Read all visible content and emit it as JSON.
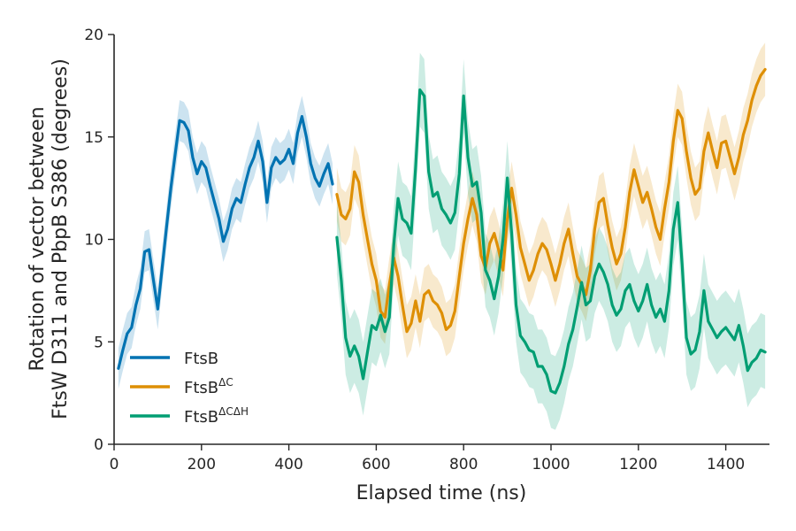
{
  "chart_data": {
    "type": "line",
    "title": "",
    "xlabel": "Elapsed time (ns)",
    "ylabel_lines": [
      "Rotation of vector between",
      "FtsW D311 and PbpB S386 (degrees)"
    ],
    "xlim": [
      0,
      1500
    ],
    "ylim": [
      0,
      20
    ],
    "xticks": [
      0,
      200,
      400,
      600,
      800,
      1000,
      1200,
      1400
    ],
    "yticks": [
      0,
      5,
      10,
      15,
      20
    ],
    "grid": false,
    "legend_position": "lower-left",
    "series": [
      {
        "name": "FtsB",
        "sup": "",
        "color": "#0173b2",
        "band_half_width": 1.0,
        "points": [
          [
            10,
            3.7
          ],
          [
            20,
            4.6
          ],
          [
            30,
            5.4
          ],
          [
            40,
            5.7
          ],
          [
            50,
            6.8
          ],
          [
            60,
            7.6
          ],
          [
            70,
            9.4
          ],
          [
            80,
            9.5
          ],
          [
            90,
            8.0
          ],
          [
            100,
            6.6
          ],
          [
            110,
            8.6
          ],
          [
            120,
            10.6
          ],
          [
            130,
            12.5
          ],
          [
            140,
            14.2
          ],
          [
            150,
            15.8
          ],
          [
            160,
            15.7
          ],
          [
            170,
            15.3
          ],
          [
            180,
            14.0
          ],
          [
            190,
            13.2
          ],
          [
            200,
            13.8
          ],
          [
            210,
            13.5
          ],
          [
            220,
            12.6
          ],
          [
            230,
            11.8
          ],
          [
            240,
            11.0
          ],
          [
            250,
            9.9
          ],
          [
            260,
            10.5
          ],
          [
            270,
            11.5
          ],
          [
            280,
            12.0
          ],
          [
            290,
            11.8
          ],
          [
            300,
            12.7
          ],
          [
            310,
            13.5
          ],
          [
            320,
            14.0
          ],
          [
            330,
            14.8
          ],
          [
            340,
            13.8
          ],
          [
            350,
            11.8
          ],
          [
            360,
            13.5
          ],
          [
            370,
            14.0
          ],
          [
            380,
            13.7
          ],
          [
            390,
            13.9
          ],
          [
            400,
            14.4
          ],
          [
            410,
            13.7
          ],
          [
            420,
            15.2
          ],
          [
            430,
            16.0
          ],
          [
            440,
            15.0
          ],
          [
            450,
            13.7
          ],
          [
            460,
            13.0
          ],
          [
            470,
            12.6
          ],
          [
            480,
            13.2
          ],
          [
            490,
            13.7
          ],
          [
            500,
            12.7
          ]
        ]
      },
      {
        "name": "FtsB",
        "sup": "ΔC",
        "color": "#de8f05",
        "band_half_width": 1.3,
        "points": [
          [
            510,
            12.2
          ],
          [
            520,
            11.2
          ],
          [
            530,
            11.0
          ],
          [
            540,
            11.5
          ],
          [
            550,
            13.3
          ],
          [
            560,
            12.8
          ],
          [
            570,
            11.2
          ],
          [
            580,
            10.0
          ],
          [
            590,
            8.8
          ],
          [
            600,
            8.0
          ],
          [
            610,
            6.5
          ],
          [
            620,
            6.2
          ],
          [
            630,
            7.8
          ],
          [
            640,
            9.1
          ],
          [
            650,
            8.2
          ],
          [
            660,
            6.8
          ],
          [
            670,
            5.5
          ],
          [
            680,
            5.9
          ],
          [
            690,
            7.0
          ],
          [
            700,
            6.0
          ],
          [
            710,
            7.3
          ],
          [
            720,
            7.5
          ],
          [
            730,
            7.0
          ],
          [
            740,
            6.8
          ],
          [
            750,
            6.4
          ],
          [
            760,
            5.6
          ],
          [
            770,
            5.8
          ],
          [
            780,
            6.5
          ],
          [
            790,
            8.2
          ],
          [
            800,
            9.8
          ],
          [
            810,
            11.0
          ],
          [
            820,
            12.0
          ],
          [
            830,
            11.2
          ],
          [
            840,
            9.2
          ],
          [
            850,
            8.6
          ],
          [
            860,
            9.8
          ],
          [
            870,
            10.3
          ],
          [
            880,
            9.5
          ],
          [
            890,
            8.5
          ],
          [
            900,
            11.0
          ],
          [
            910,
            12.5
          ],
          [
            920,
            11.2
          ],
          [
            930,
            9.6
          ],
          [
            940,
            8.8
          ],
          [
            950,
            8.0
          ],
          [
            960,
            8.5
          ],
          [
            970,
            9.3
          ],
          [
            980,
            9.8
          ],
          [
            990,
            9.5
          ],
          [
            1000,
            8.8
          ],
          [
            1010,
            8.0
          ],
          [
            1020,
            8.8
          ],
          [
            1030,
            9.8
          ],
          [
            1040,
            10.5
          ],
          [
            1050,
            9.3
          ],
          [
            1060,
            8.2
          ],
          [
            1070,
            7.8
          ],
          [
            1080,
            7.3
          ],
          [
            1090,
            8.5
          ],
          [
            1100,
            10.5
          ],
          [
            1110,
            11.8
          ],
          [
            1120,
            12.0
          ],
          [
            1130,
            10.7
          ],
          [
            1140,
            9.6
          ],
          [
            1150,
            8.8
          ],
          [
            1160,
            9.3
          ],
          [
            1170,
            10.6
          ],
          [
            1180,
            12.3
          ],
          [
            1190,
            13.4
          ],
          [
            1200,
            12.6
          ],
          [
            1210,
            11.8
          ],
          [
            1220,
            12.3
          ],
          [
            1230,
            11.5
          ],
          [
            1240,
            10.6
          ],
          [
            1250,
            10.0
          ],
          [
            1260,
            11.5
          ],
          [
            1270,
            12.8
          ],
          [
            1280,
            14.8
          ],
          [
            1290,
            16.3
          ],
          [
            1300,
            15.9
          ],
          [
            1310,
            14.3
          ],
          [
            1320,
            13.0
          ],
          [
            1330,
            12.2
          ],
          [
            1340,
            12.5
          ],
          [
            1350,
            14.3
          ],
          [
            1360,
            15.2
          ],
          [
            1370,
            14.3
          ],
          [
            1380,
            13.5
          ],
          [
            1390,
            14.7
          ],
          [
            1400,
            14.8
          ],
          [
            1410,
            14.0
          ],
          [
            1420,
            13.2
          ],
          [
            1430,
            14.0
          ],
          [
            1440,
            15.1
          ],
          [
            1450,
            15.8
          ],
          [
            1460,
            16.8
          ],
          [
            1470,
            17.5
          ],
          [
            1480,
            18.0
          ],
          [
            1490,
            18.3
          ]
        ]
      },
      {
        "name": "FtsB",
        "sup": "ΔCΔH",
        "color": "#029e73",
        "band_half_width": 1.8,
        "points": [
          [
            510,
            10.1
          ],
          [
            520,
            8.0
          ],
          [
            530,
            5.2
          ],
          [
            540,
            4.3
          ],
          [
            550,
            4.8
          ],
          [
            560,
            4.3
          ],
          [
            570,
            3.2
          ],
          [
            580,
            4.5
          ],
          [
            590,
            5.8
          ],
          [
            600,
            5.6
          ],
          [
            610,
            6.3
          ],
          [
            620,
            5.5
          ],
          [
            630,
            6.2
          ],
          [
            640,
            9.7
          ],
          [
            650,
            12.0
          ],
          [
            660,
            11.0
          ],
          [
            670,
            10.8
          ],
          [
            680,
            10.3
          ],
          [
            690,
            13.5
          ],
          [
            700,
            17.3
          ],
          [
            710,
            17.0
          ],
          [
            720,
            13.3
          ],
          [
            730,
            12.1
          ],
          [
            740,
            12.3
          ],
          [
            750,
            11.5
          ],
          [
            760,
            11.2
          ],
          [
            770,
            10.8
          ],
          [
            780,
            11.3
          ],
          [
            790,
            13.2
          ],
          [
            800,
            17.0
          ],
          [
            810,
            14.0
          ],
          [
            820,
            12.6
          ],
          [
            830,
            12.8
          ],
          [
            840,
            11.3
          ],
          [
            850,
            8.5
          ],
          [
            860,
            8.0
          ],
          [
            870,
            7.1
          ],
          [
            880,
            8.2
          ],
          [
            890,
            10.0
          ],
          [
            900,
            13.0
          ],
          [
            910,
            10.3
          ],
          [
            920,
            6.8
          ],
          [
            930,
            5.3
          ],
          [
            940,
            5.0
          ],
          [
            950,
            4.6
          ],
          [
            960,
            4.5
          ],
          [
            970,
            3.8
          ],
          [
            980,
            3.8
          ],
          [
            990,
            3.4
          ],
          [
            1000,
            2.6
          ],
          [
            1010,
            2.5
          ],
          [
            1020,
            3.0
          ],
          [
            1030,
            3.8
          ],
          [
            1040,
            4.9
          ],
          [
            1050,
            5.6
          ],
          [
            1060,
            6.7
          ],
          [
            1070,
            7.9
          ],
          [
            1080,
            6.8
          ],
          [
            1090,
            7.0
          ],
          [
            1100,
            8.2
          ],
          [
            1110,
            8.8
          ],
          [
            1120,
            8.4
          ],
          [
            1130,
            7.8
          ],
          [
            1140,
            6.8
          ],
          [
            1150,
            6.3
          ],
          [
            1160,
            6.6
          ],
          [
            1170,
            7.5
          ],
          [
            1180,
            7.8
          ],
          [
            1190,
            7.0
          ],
          [
            1200,
            6.5
          ],
          [
            1210,
            7.0
          ],
          [
            1220,
            7.8
          ],
          [
            1230,
            6.8
          ],
          [
            1240,
            6.2
          ],
          [
            1250,
            6.6
          ],
          [
            1260,
            6.0
          ],
          [
            1270,
            7.5
          ],
          [
            1280,
            10.5
          ],
          [
            1290,
            11.8
          ],
          [
            1300,
            8.8
          ],
          [
            1310,
            5.2
          ],
          [
            1320,
            4.4
          ],
          [
            1330,
            4.6
          ],
          [
            1340,
            5.5
          ],
          [
            1350,
            7.5
          ],
          [
            1360,
            6.0
          ],
          [
            1370,
            5.6
          ],
          [
            1380,
            5.2
          ],
          [
            1390,
            5.5
          ],
          [
            1400,
            5.7
          ],
          [
            1410,
            5.4
          ],
          [
            1420,
            5.1
          ],
          [
            1430,
            5.8
          ],
          [
            1440,
            4.8
          ],
          [
            1450,
            3.6
          ],
          [
            1460,
            4.0
          ],
          [
            1470,
            4.2
          ],
          [
            1480,
            4.6
          ],
          [
            1490,
            4.5
          ]
        ]
      }
    ]
  }
}
